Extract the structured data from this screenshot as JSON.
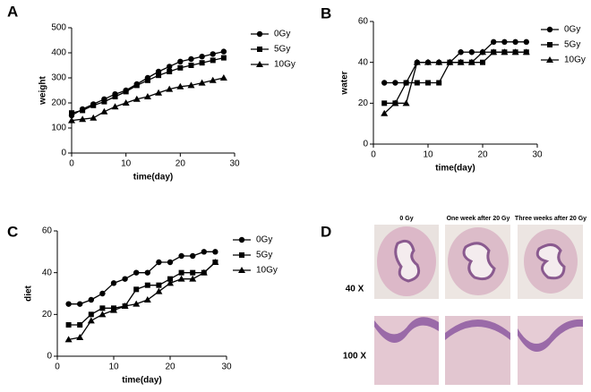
{
  "chart_data": [
    {
      "type": "line",
      "label": "A",
      "xlabel": "time(day)",
      "ylabel": "weight",
      "xlim": [
        0,
        30
      ],
      "xticks": [
        0,
        10,
        20,
        30
      ],
      "ylim": [
        0,
        500
      ],
      "yticks": [
        0,
        100,
        200,
        300,
        400,
        500
      ],
      "x": [
        0,
        2,
        4,
        6,
        8,
        10,
        12,
        14,
        16,
        18,
        20,
        22,
        24,
        26,
        28
      ],
      "series": [
        {
          "name": "0Gy",
          "color": "#000000",
          "marker": "circle",
          "values": [
            150,
            175,
            195,
            215,
            235,
            250,
            275,
            300,
            325,
            345,
            365,
            375,
            385,
            395,
            405
          ]
        },
        {
          "name": "5Gy",
          "color": "#000000",
          "marker": "square",
          "values": [
            160,
            170,
            190,
            205,
            225,
            245,
            270,
            290,
            310,
            325,
            340,
            350,
            360,
            370,
            380
          ]
        },
        {
          "name": "10Gy",
          "color": "#000000",
          "marker": "triangle",
          "values": [
            130,
            135,
            140,
            165,
            185,
            200,
            215,
            225,
            240,
            255,
            265,
            270,
            280,
            290,
            300
          ]
        }
      ]
    },
    {
      "type": "line",
      "label": "B",
      "xlabel": "time(day)",
      "ylabel": "water",
      "xlim": [
        0,
        30
      ],
      "xticks": [
        0,
        10,
        20,
        30
      ],
      "ylim": [
        0,
        60
      ],
      "yticks": [
        0,
        20,
        40,
        60
      ],
      "x": [
        2,
        4,
        6,
        8,
        10,
        12,
        14,
        16,
        18,
        20,
        22,
        24,
        26,
        28
      ],
      "series": [
        {
          "name": "0Gy",
          "color": "#000000",
          "marker": "circle",
          "values": [
            30,
            30,
            30,
            40,
            40,
            40,
            40,
            45,
            45,
            45,
            50,
            50,
            50,
            50
          ]
        },
        {
          "name": "5Gy",
          "color": "#000000",
          "marker": "square",
          "values": [
            20,
            20,
            30,
            30,
            30,
            30,
            40,
            40,
            40,
            40,
            45,
            45,
            45,
            45
          ]
        },
        {
          "name": "10Gy",
          "color": "#000000",
          "marker": "triangle",
          "values": [
            15,
            20,
            20,
            40,
            40,
            40,
            40,
            40,
            40,
            45,
            45,
            45,
            45,
            45
          ]
        }
      ]
    },
    {
      "type": "line",
      "label": "C",
      "xlabel": "time(day)",
      "ylabel": "diet",
      "xlim": [
        0,
        30
      ],
      "xticks": [
        0,
        10,
        20,
        30
      ],
      "ylim": [
        0,
        60
      ],
      "yticks": [
        0,
        20,
        40,
        60
      ],
      "x": [
        2,
        4,
        6,
        8,
        10,
        12,
        14,
        16,
        18,
        20,
        22,
        24,
        26,
        28
      ],
      "series": [
        {
          "name": "0Gy",
          "color": "#000000",
          "marker": "circle",
          "values": [
            25,
            25,
            27,
            30,
            35,
            37,
            40,
            40,
            45,
            45,
            48,
            48,
            50,
            50
          ]
        },
        {
          "name": "5Gy",
          "color": "#000000",
          "marker": "square",
          "values": [
            15,
            15,
            20,
            23,
            23,
            24,
            32,
            34,
            34,
            37,
            40,
            40,
            40,
            45
          ]
        },
        {
          "name": "10Gy",
          "color": "#000000",
          "marker": "triangle",
          "values": [
            8,
            9,
            17,
            20,
            22,
            24,
            25,
            27,
            31,
            35,
            37,
            37,
            40,
            45
          ]
        }
      ]
    }
  ],
  "panel_d": {
    "label": "D",
    "columns": [
      "0 Gy",
      "One week after 20 Gy",
      "Three weeks after 20 Gy"
    ],
    "rows": [
      "40 X",
      "100 X"
    ]
  }
}
